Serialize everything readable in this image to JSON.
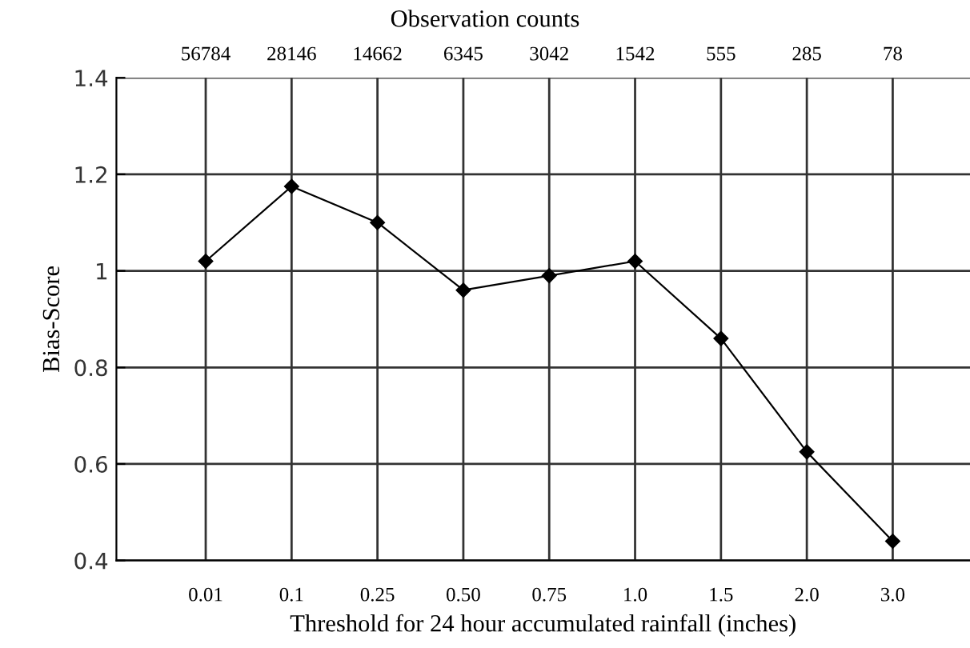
{
  "chart_data": {
    "type": "line",
    "xlabel": "Threshold for 24 hour accumulated rainfall (inches)",
    "ylabel": "Bias-Score",
    "x2label": "Observation counts",
    "categories": [
      "0.01",
      "0.1",
      "0.25",
      "0.50",
      "0.75",
      "1.0",
      "1.5",
      "2.0",
      "3.0"
    ],
    "series": [
      {
        "color": "#000000",
        "values": [
          1.02,
          1.175,
          1.1,
          0.96,
          0.99,
          1.02,
          0.86,
          0.625,
          0.44
        ]
      }
    ],
    "ylim": [
      0.4,
      1.4
    ],
    "yticks": [
      0.4,
      0.6,
      0.8,
      1,
      1.2,
      1.4
    ],
    "grid": true,
    "marker": "diamond",
    "line_style": "solid",
    "annotations": [
      "56784",
      "28146",
      "14662",
      "6345",
      "3042",
      "1542",
      "555",
      "285",
      "78"
    ]
  }
}
